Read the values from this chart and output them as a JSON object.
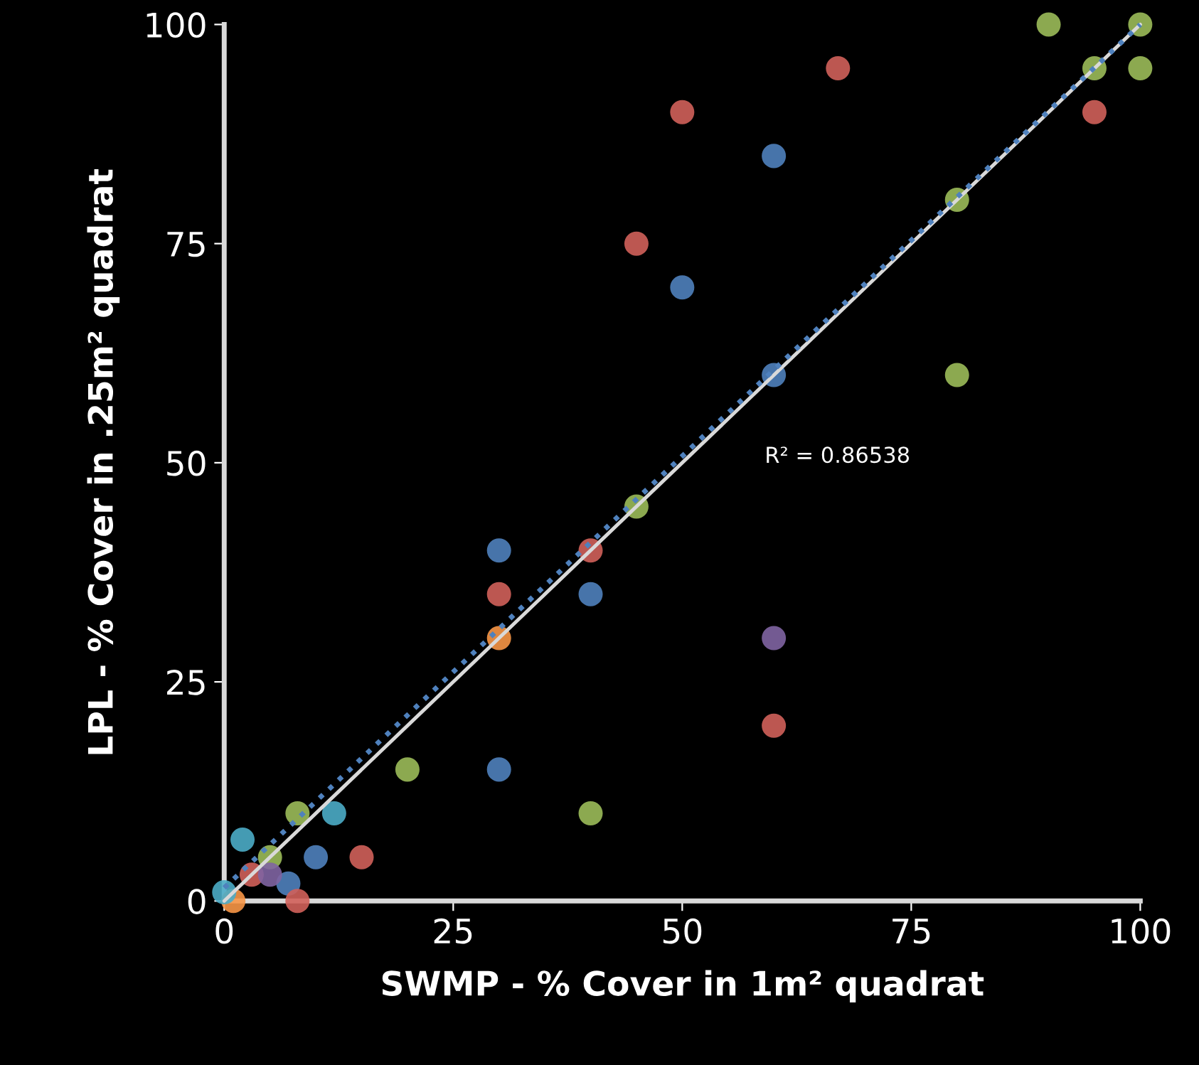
{
  "chart_data": {
    "type": "scatter",
    "xlabel": "SWMP - % Cover in 1m² quadrat",
    "ylabel": "LPL - % Cover in .25m² quadrat",
    "xlim": [
      0,
      100
    ],
    "ylim": [
      0,
      100
    ],
    "xticks": [
      0,
      25,
      50,
      75,
      100
    ],
    "yticks": [
      0,
      25,
      50,
      75,
      100
    ],
    "grid": false,
    "marker": "circle",
    "annotations": [
      "R² = 0.86538"
    ],
    "series": [
      {
        "type": "line",
        "color": "#d9d9d9",
        "line_style": "solid",
        "marker": "none",
        "x": [
          0,
          100
        ],
        "values": [
          0,
          100
        ]
      },
      {
        "type": "line",
        "color": "#4f81bd",
        "line_style": "dotted",
        "marker": "none",
        "x": [
          0,
          100
        ],
        "values": [
          1.5,
          100
        ]
      },
      {
        "color": "#4f81bd",
        "x": [
          60,
          50,
          60,
          30,
          40,
          30,
          10,
          7
        ],
        "values": [
          85,
          70,
          60,
          40,
          35,
          15,
          5,
          2
        ]
      },
      {
        "color": "#d0605a",
        "x": [
          67,
          50,
          45,
          95,
          30,
          40,
          60,
          15,
          8,
          3
        ],
        "values": [
          95,
          90,
          75,
          90,
          35,
          40,
          20,
          5,
          0,
          3
        ]
      },
      {
        "color": "#9bbb59",
        "x": [
          90,
          100,
          95,
          100,
          80,
          80,
          45,
          40,
          20,
          8,
          5
        ],
        "values": [
          100,
          100,
          95,
          95,
          80,
          60,
          45,
          10,
          15,
          10,
          5
        ]
      },
      {
        "color": "#f79646",
        "x": [
          30,
          1
        ],
        "values": [
          30,
          0
        ]
      },
      {
        "color": "#8064a2",
        "x": [
          60,
          5
        ],
        "values": [
          30,
          3
        ]
      },
      {
        "color": "#4bacc6",
        "x": [
          2,
          12,
          0
        ],
        "values": [
          7,
          10,
          1
        ]
      }
    ]
  }
}
